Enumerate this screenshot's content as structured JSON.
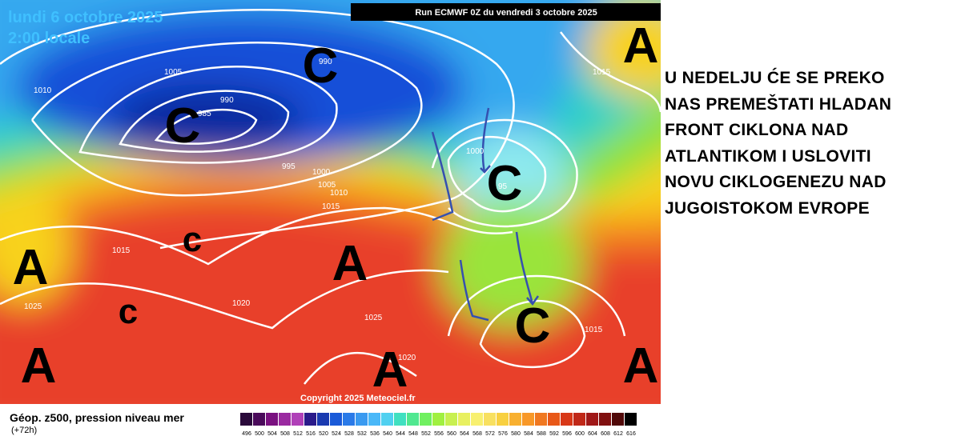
{
  "header": {
    "date": "lundi 6 octobre 2025",
    "time": "2:00 locale",
    "run": "Run ECMWF 0Z du vendredi 3 octobre 2025"
  },
  "systems": [
    "A",
    "A",
    "C",
    "C",
    "c",
    "c",
    "A",
    "C",
    "C",
    "A",
    "A",
    "A"
  ],
  "isobar_labels": [
    "1010",
    "1005",
    "990",
    "990",
    "985",
    "995",
    "1000",
    "1005",
    "1010",
    "1015",
    "1015",
    "1015",
    "1025",
    "1020",
    "1025",
    "1020",
    "1015",
    "1000",
    "95"
  ],
  "annotation": [
    "U NEDELJU ĆE SE PREKO",
    "NAS PREMEŠTATI HLADAN",
    "FRONT CIKLONA NAD",
    "ATLANTIKOM I USLOVITI",
    "NOVU CIKLOGENEZU NAD",
    "JUGOISTOKOM EVROPE"
  ],
  "copyright": "Copyright 2025 Meteociel.fr",
  "legend": {
    "title": "Géop. z500, pression niveau mer",
    "lead": "(+72h)",
    "scale": [
      "496",
      "500",
      "504",
      "508",
      "512",
      "516",
      "520",
      "524",
      "528",
      "532",
      "536",
      "540",
      "544",
      "548",
      "552",
      "556",
      "560",
      "564",
      "568",
      "572",
      "576",
      "580",
      "584",
      "588",
      "592",
      "596",
      "600",
      "604",
      "608",
      "612",
      "616"
    ]
  }
}
